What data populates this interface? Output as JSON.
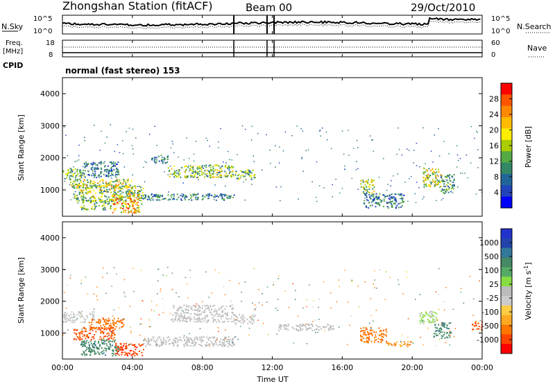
{
  "header": {
    "station": "Zhongshan Station (fitACF)",
    "beam": "Beam 00",
    "date": "29/Oct/2010"
  },
  "panel_noise": {
    "left_label": "N.Sky",
    "right_label": "N.Search",
    "left_ticks": [
      "10^5",
      "10^0"
    ],
    "right_ticks": [
      "10^5",
      "10^0"
    ]
  },
  "panel_freq": {
    "left_label_1": "Freq.",
    "left_label_2": "[MHz]",
    "right_label": "Nave",
    "left_ticks": [
      "18",
      "8"
    ],
    "right_ticks": [
      "60",
      "0"
    ]
  },
  "cpid": {
    "label": "CPID",
    "text": "normal (fast stereo) 153"
  },
  "power_colorbar": {
    "label": "Power [dB]",
    "ticks": [
      "28",
      "24",
      "20",
      "16",
      "12",
      "8",
      "4"
    ],
    "colors": [
      "#ff0000",
      "#ff5500",
      "#ff8800",
      "#ffbb00",
      "#ffee00",
      "#aacc00",
      "#55aa44",
      "#338866",
      "#226699",
      "#2244bb",
      "#0000ff"
    ]
  },
  "velocity_colorbar": {
    "label": "Velocity [m s",
    "label_sup": "-1",
    "label_end": "]",
    "ticks": [
      "1000",
      "500",
      "100",
      "25",
      "-25",
      "-100",
      "-500",
      "-1000"
    ],
    "colors": [
      "#2233cc",
      "#2244aa",
      "#337799",
      "#448866",
      "#55aa66",
      "#88dd44",
      "#bbbbbb",
      "#cccccc",
      "#ffcc44",
      "#ffaa22",
      "#ff7700",
      "#ff4400",
      "#ff0000"
    ]
  },
  "chart_data": {
    "type": "heatmap",
    "xlabel": "Time UT",
    "x_ticks": [
      "00:00",
      "04:00",
      "08:00",
      "12:00",
      "16:00",
      "20:00",
      "00:00"
    ],
    "xlim_hours": [
      0,
      24
    ],
    "ylabel": "Slant Range [km]",
    "y_ticks": [
      4000,
      3000,
      2000,
      1000
    ],
    "ylim_km": [
      180,
      4500
    ],
    "panels": [
      {
        "name": "Power",
        "blobs": [
          {
            "t0": 0.0,
            "t1": 1.2,
            "r0": 1350,
            "r1": 1700,
            "v": 12
          },
          {
            "t0": 1.2,
            "t1": 3.2,
            "r0": 1400,
            "r1": 1900,
            "v": 8
          },
          {
            "t0": 0.4,
            "t1": 4.0,
            "r0": 1050,
            "r1": 1350,
            "v": 16
          },
          {
            "t0": 0.6,
            "t1": 4.6,
            "r0": 650,
            "r1": 1150,
            "v": 14
          },
          {
            "t0": 2.8,
            "t1": 4.5,
            "r0": 300,
            "r1": 900,
            "v": 20
          },
          {
            "t0": 1.0,
            "t1": 2.8,
            "r0": 400,
            "r1": 700,
            "v": 12
          },
          {
            "t0": 5.0,
            "t1": 6.0,
            "r0": 1850,
            "r1": 2100,
            "v": 8
          },
          {
            "t0": 6.0,
            "t1": 9.8,
            "r0": 1400,
            "r1": 1800,
            "v": 14
          },
          {
            "t0": 4.5,
            "t1": 9.8,
            "r0": 700,
            "r1": 900,
            "v": 8
          },
          {
            "t0": 9.8,
            "t1": 11.0,
            "r0": 1350,
            "r1": 1650,
            "v": 12
          },
          {
            "t0": 17.0,
            "t1": 17.8,
            "r0": 900,
            "r1": 1350,
            "v": 14
          },
          {
            "t0": 17.2,
            "t1": 19.5,
            "r0": 450,
            "r1": 900,
            "v": 8
          },
          {
            "t0": 20.6,
            "t1": 21.6,
            "r0": 1100,
            "r1": 1700,
            "v": 16
          },
          {
            "t0": 21.6,
            "t1": 22.4,
            "r0": 900,
            "r1": 1500,
            "v": 10
          }
        ]
      },
      {
        "name": "Velocity",
        "blobs": [
          {
            "t0": 0.0,
            "t1": 1.8,
            "r0": 1350,
            "r1": 1700,
            "v": 0
          },
          {
            "t0": 1.5,
            "t1": 3.5,
            "r0": 1150,
            "r1": 1500,
            "v": -200
          },
          {
            "t0": 0.6,
            "t1": 3.0,
            "r0": 800,
            "r1": 1200,
            "v": -300
          },
          {
            "t0": 1.0,
            "t1": 3.2,
            "r0": 300,
            "r1": 800,
            "v": 200
          },
          {
            "t0": 3.0,
            "t1": 4.6,
            "r0": 300,
            "r1": 700,
            "v": -400
          },
          {
            "t0": 6.2,
            "t1": 9.8,
            "r0": 1350,
            "r1": 1900,
            "v": 0
          },
          {
            "t0": 4.6,
            "t1": 9.8,
            "r0": 600,
            "r1": 900,
            "v": 10
          },
          {
            "t0": 9.8,
            "t1": 11.0,
            "r0": 1300,
            "r1": 1600,
            "v": 0
          },
          {
            "t0": 12.3,
            "t1": 15.5,
            "r0": 1100,
            "r1": 1300,
            "v": 5
          },
          {
            "t0": 17.0,
            "t1": 18.5,
            "r0": 700,
            "r1": 1200,
            "v": -200
          },
          {
            "t0": 18.5,
            "t1": 20.0,
            "r0": 600,
            "r1": 750,
            "v": -100
          },
          {
            "t0": 20.4,
            "t1": 21.4,
            "r0": 1300,
            "r1": 1700,
            "v": 30
          },
          {
            "t0": 21.2,
            "t1": 22.2,
            "r0": 850,
            "r1": 1350,
            "v": 200
          },
          {
            "t0": 23.4,
            "t1": 24.0,
            "r0": 1100,
            "r1": 1400,
            "v": -300
          }
        ]
      }
    ]
  }
}
